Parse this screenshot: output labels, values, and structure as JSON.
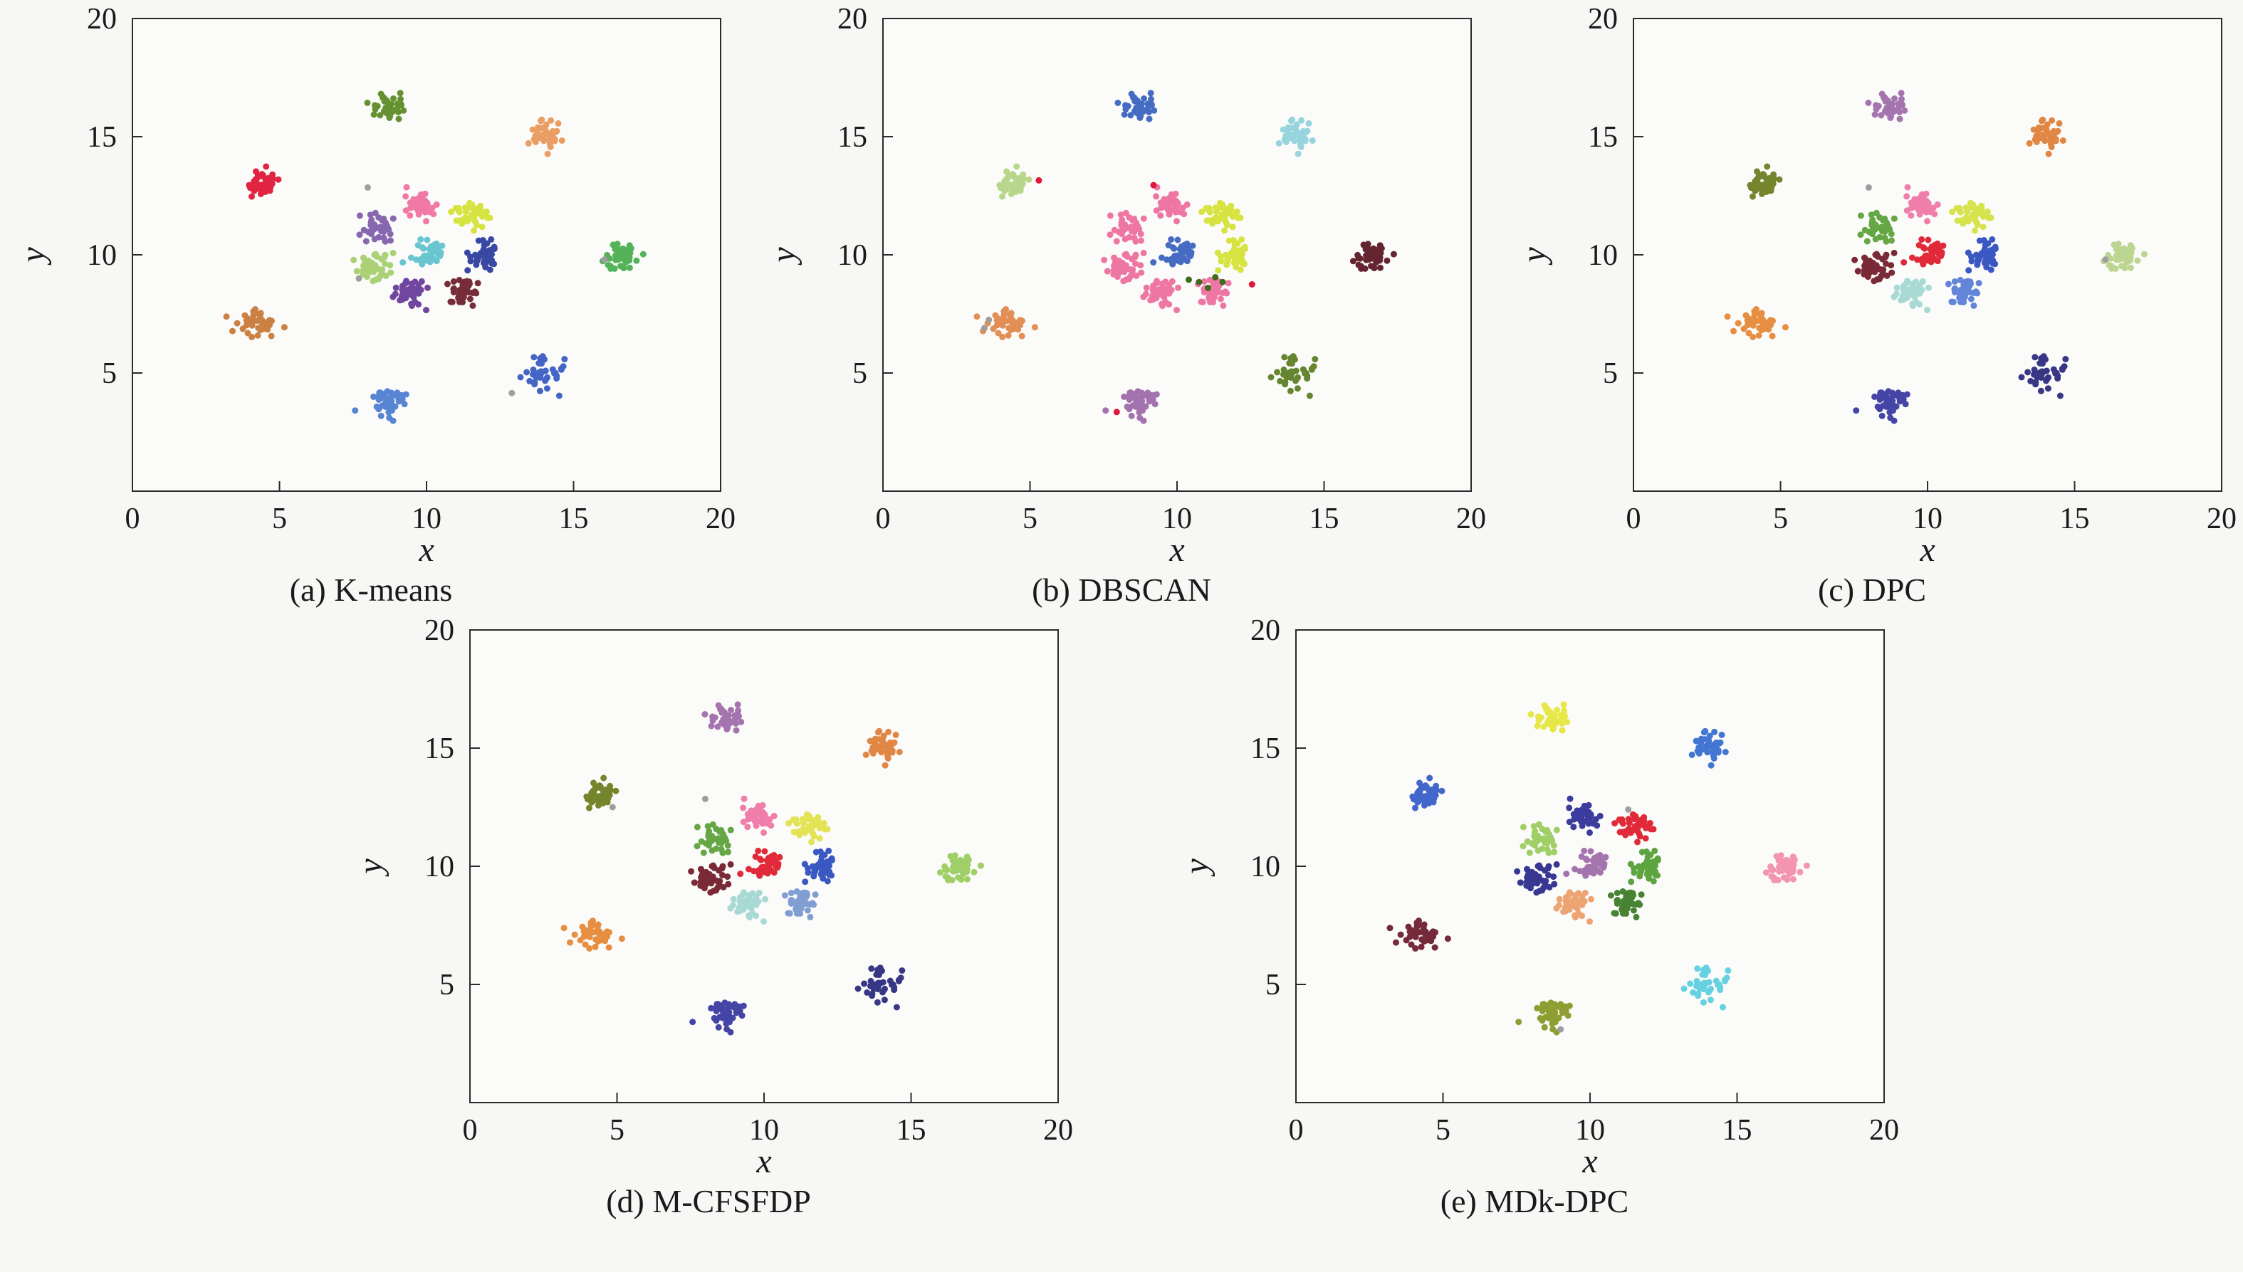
{
  "page": {
    "background": "#f7f7f5"
  },
  "chart_data": [
    {
      "id": "a",
      "type": "scatter",
      "caption": "(a) K-means",
      "xlabel": "x",
      "ylabel": "y",
      "xlim": [
        0,
        20
      ],
      "ylim": [
        0,
        20
      ],
      "xticks": [
        0,
        5,
        10,
        15,
        20
      ],
      "yticks": [
        5,
        10,
        15,
        20
      ],
      "grid": false,
      "legend": "none",
      "clusters": [
        {
          "center": [
            4.4,
            13.0
          ],
          "n": 40,
          "std": 0.3,
          "color": "#e01938"
        },
        {
          "center": [
            8.7,
            16.3
          ],
          "n": 40,
          "std": 0.3,
          "color": "#5f8c26"
        },
        {
          "center": [
            14.0,
            15.0
          ],
          "n": 40,
          "std": 0.3,
          "color": "#ea9a5e"
        },
        {
          "center": [
            16.6,
            9.9
          ],
          "n": 40,
          "std": 0.3,
          "color": "#4caf50"
        },
        {
          "center": [
            14.0,
            5.0
          ],
          "n": 40,
          "std": 0.3,
          "color": "#3b5ec4"
        },
        {
          "center": [
            8.7,
            3.8
          ],
          "n": 40,
          "std": 0.3,
          "color": "#4f7ed2"
        },
        {
          "center": [
            4.3,
            7.1
          ],
          "n": 40,
          "std": 0.3,
          "color": "#c97b3a"
        },
        {
          "center": [
            9.8,
            12.1
          ],
          "n": 40,
          "std": 0.3,
          "color": "#f173a2"
        },
        {
          "center": [
            11.5,
            11.7
          ],
          "n": 40,
          "std": 0.3,
          "color": "#d6e237"
        },
        {
          "center": [
            8.4,
            11.1
          ],
          "n": 40,
          "std": 0.3,
          "color": "#8161ad"
        },
        {
          "center": [
            8.2,
            9.5
          ],
          "n": 40,
          "std": 0.3,
          "color": "#a6cf6e"
        },
        {
          "center": [
            9.4,
            8.4
          ],
          "n": 40,
          "std": 0.3,
          "color": "#6a3d9a"
        },
        {
          "center": [
            11.2,
            8.5
          ],
          "n": 40,
          "std": 0.3,
          "color": "#6e2230"
        },
        {
          "center": [
            12.0,
            9.9
          ],
          "n": 40,
          "std": 0.3,
          "color": "#2f3f9e"
        },
        {
          "center": [
            10.1,
            10.1
          ],
          "n": 40,
          "std": 0.3,
          "color": "#62c4cf"
        }
      ],
      "noise": [
        {
          "x": 8.0,
          "y": 12.85,
          "color": "#9e9e9e"
        },
        {
          "x": 16.05,
          "y": 9.8,
          "color": "#9e9e9e"
        },
        {
          "x": 7.7,
          "y": 9.0,
          "color": "#9e9e9e"
        },
        {
          "x": 12.9,
          "y": 4.15,
          "color": "#9e9e9e"
        }
      ]
    },
    {
      "id": "b",
      "type": "scatter",
      "caption": "(b) DBSCAN",
      "xlabel": "x",
      "ylabel": "y",
      "xlim": [
        0,
        20
      ],
      "ylim": [
        0,
        20
      ],
      "xticks": [
        0,
        5,
        10,
        15,
        20
      ],
      "yticks": [
        5,
        10,
        15,
        20
      ],
      "grid": false,
      "legend": "none",
      "clusters": [
        {
          "center": [
            4.4,
            13.0
          ],
          "n": 40,
          "std": 0.3,
          "color": "#b5d687"
        },
        {
          "center": [
            8.7,
            16.3
          ],
          "n": 40,
          "std": 0.3,
          "color": "#3c64c0"
        },
        {
          "center": [
            14.0,
            15.0
          ],
          "n": 40,
          "std": 0.3,
          "color": "#92d2dc"
        },
        {
          "center": [
            16.6,
            9.9
          ],
          "n": 40,
          "std": 0.3,
          "color": "#5e1a26"
        },
        {
          "center": [
            14.0,
            5.0
          ],
          "n": 40,
          "std": 0.3,
          "color": "#5e7f26"
        },
        {
          "center": [
            8.7,
            3.8
          ],
          "n": 40,
          "std": 0.3,
          "color": "#9e6cac"
        },
        {
          "center": [
            4.3,
            7.1
          ],
          "n": 40,
          "std": 0.3,
          "color": "#e08a4c"
        },
        {
          "center": [
            9.8,
            12.1
          ],
          "n": 40,
          "std": 0.3,
          "color": "#ee6f9f"
        },
        {
          "center": [
            11.5,
            11.7
          ],
          "n": 40,
          "std": 0.3,
          "color": "#d6e237"
        },
        {
          "center": [
            8.4,
            11.1
          ],
          "n": 40,
          "std": 0.3,
          "color": "#ee6f9f"
        },
        {
          "center": [
            8.2,
            9.5
          ],
          "n": 40,
          "std": 0.3,
          "color": "#ee6f9f"
        },
        {
          "center": [
            9.4,
            8.4
          ],
          "n": 40,
          "std": 0.3,
          "color": "#ee6f9f"
        },
        {
          "center": [
            11.2,
            8.5
          ],
          "n": 40,
          "std": 0.3,
          "color": "#ee6f9f"
        },
        {
          "center": [
            12.0,
            9.9
          ],
          "n": 40,
          "std": 0.3,
          "color": "#d6e237"
        },
        {
          "center": [
            10.1,
            10.1
          ],
          "n": 40,
          "std": 0.3,
          "color": "#3c64c0"
        }
      ],
      "noise": [
        {
          "x": 5.3,
          "y": 13.15,
          "color": "#e0173a"
        },
        {
          "x": 7.95,
          "y": 3.35,
          "color": "#e0173a"
        },
        {
          "x": 9.2,
          "y": 12.95,
          "color": "#e0173a"
        },
        {
          "x": 12.55,
          "y": 8.75,
          "color": "#e0173a"
        },
        {
          "x": 10.75,
          "y": 8.85,
          "color": "#3f6b1c"
        },
        {
          "x": 11.3,
          "y": 9.05,
          "color": "#3f6b1c"
        },
        {
          "x": 10.4,
          "y": 8.95,
          "color": "#3f6b1c"
        },
        {
          "x": 11.05,
          "y": 8.6,
          "color": "#3f6b1c"
        },
        {
          "x": 11.55,
          "y": 8.85,
          "color": "#3f6b1c"
        },
        {
          "x": 3.6,
          "y": 7.25,
          "color": "#9e9e9e"
        },
        {
          "x": 3.45,
          "y": 6.9,
          "color": "#9e9e9e"
        }
      ]
    },
    {
      "id": "c",
      "type": "scatter",
      "caption": "(c) DPC",
      "xlabel": "x",
      "ylabel": "y",
      "xlim": [
        0,
        20
      ],
      "ylim": [
        0,
        20
      ],
      "xticks": [
        0,
        5,
        10,
        15,
        20
      ],
      "yticks": [
        5,
        10,
        15,
        20
      ],
      "grid": false,
      "legend": "none",
      "clusters": [
        {
          "center": [
            4.4,
            13.0
          ],
          "n": 40,
          "std": 0.3,
          "color": "#6e7f23"
        },
        {
          "center": [
            8.7,
            16.3
          ],
          "n": 40,
          "std": 0.3,
          "color": "#a06dab"
        },
        {
          "center": [
            14.0,
            15.0
          ],
          "n": 40,
          "std": 0.3,
          "color": "#e0813c"
        },
        {
          "center": [
            16.6,
            9.9
          ],
          "n": 40,
          "std": 0.3,
          "color": "#b9d48b"
        },
        {
          "center": [
            14.0,
            5.0
          ],
          "n": 40,
          "std": 0.3,
          "color": "#2d2d80"
        },
        {
          "center": [
            8.7,
            3.8
          ],
          "n": 40,
          "std": 0.3,
          "color": "#3c3ca2"
        },
        {
          "center": [
            4.3,
            7.1
          ],
          "n": 40,
          "std": 0.3,
          "color": "#e58a3a"
        },
        {
          "center": [
            9.8,
            12.1
          ],
          "n": 40,
          "std": 0.3,
          "color": "#f078a6"
        },
        {
          "center": [
            11.5,
            11.7
          ],
          "n": 40,
          "std": 0.3,
          "color": "#d6e243"
        },
        {
          "center": [
            8.4,
            11.1
          ],
          "n": 40,
          "std": 0.3,
          "color": "#5ea23c"
        },
        {
          "center": [
            8.2,
            9.5
          ],
          "n": 40,
          "std": 0.3,
          "color": "#741f2d"
        },
        {
          "center": [
            9.4,
            8.4
          ],
          "n": 40,
          "std": 0.3,
          "color": "#a5d8d4"
        },
        {
          "center": [
            11.2,
            8.5
          ],
          "n": 40,
          "std": 0.3,
          "color": "#5a7fd8"
        },
        {
          "center": [
            12.0,
            9.9
          ],
          "n": 40,
          "std": 0.3,
          "color": "#3050c0"
        },
        {
          "center": [
            10.1,
            10.1
          ],
          "n": 40,
          "std": 0.3,
          "color": "#e01f2f"
        }
      ],
      "noise": [
        {
          "x": 8.0,
          "y": 12.85,
          "color": "#9e9e9e"
        },
        {
          "x": 16.05,
          "y": 9.8,
          "color": "#9e9e9e"
        }
      ]
    },
    {
      "id": "d",
      "type": "scatter",
      "caption": "(d) M-CFSFDP",
      "xlabel": "x",
      "ylabel": "y",
      "xlim": [
        0,
        20
      ],
      "ylim": [
        0,
        20
      ],
      "xticks": [
        0,
        5,
        10,
        15,
        20
      ],
      "yticks": [
        5,
        10,
        15,
        20
      ],
      "grid": false,
      "legend": "none",
      "clusters": [
        {
          "center": [
            4.4,
            13.0
          ],
          "n": 40,
          "std": 0.3,
          "color": "#6e7f23"
        },
        {
          "center": [
            8.7,
            16.3
          ],
          "n": 40,
          "std": 0.3,
          "color": "#a06dab"
        },
        {
          "center": [
            14.0,
            15.0
          ],
          "n": 40,
          "std": 0.3,
          "color": "#e0813c"
        },
        {
          "center": [
            16.6,
            9.9
          ],
          "n": 40,
          "std": 0.3,
          "color": "#9ccc60"
        },
        {
          "center": [
            14.0,
            5.0
          ],
          "n": 40,
          "std": 0.3,
          "color": "#2d2d80"
        },
        {
          "center": [
            8.7,
            3.8
          ],
          "n": 40,
          "std": 0.3,
          "color": "#3c3ca2"
        },
        {
          "center": [
            4.3,
            7.1
          ],
          "n": 40,
          "std": 0.3,
          "color": "#e58a3a"
        },
        {
          "center": [
            9.8,
            12.1
          ],
          "n": 40,
          "std": 0.3,
          "color": "#f078a6"
        },
        {
          "center": [
            11.5,
            11.7
          ],
          "n": 40,
          "std": 0.3,
          "color": "#e2e24e"
        },
        {
          "center": [
            8.4,
            11.1
          ],
          "n": 40,
          "std": 0.3,
          "color": "#5ea23c"
        },
        {
          "center": [
            8.2,
            9.5
          ],
          "n": 40,
          "std": 0.3,
          "color": "#741f2d"
        },
        {
          "center": [
            9.4,
            8.4
          ],
          "n": 40,
          "std": 0.3,
          "color": "#a5d8d4"
        },
        {
          "center": [
            11.2,
            8.5
          ],
          "n": 40,
          "std": 0.3,
          "color": "#7a9ad0"
        },
        {
          "center": [
            12.0,
            9.9
          ],
          "n": 40,
          "std": 0.3,
          "color": "#3050c0"
        },
        {
          "center": [
            10.1,
            10.1
          ],
          "n": 40,
          "std": 0.3,
          "color": "#e01f2f"
        }
      ],
      "noise": [
        {
          "x": 4.85,
          "y": 12.5,
          "color": "#9e9e9e"
        },
        {
          "x": 8.0,
          "y": 12.85,
          "color": "#9e9e9e"
        }
      ]
    },
    {
      "id": "e",
      "type": "scatter",
      "caption": "(e) MDk-DPC",
      "xlabel": "x",
      "ylabel": "y",
      "xlim": [
        0,
        20
      ],
      "ylim": [
        0,
        20
      ],
      "xticks": [
        0,
        5,
        10,
        15,
        20
      ],
      "yticks": [
        5,
        10,
        15,
        20
      ],
      "grid": false,
      "legend": "none",
      "clusters": [
        {
          "center": [
            4.4,
            13.0
          ],
          "n": 40,
          "std": 0.3,
          "color": "#3a5fc8"
        },
        {
          "center": [
            8.7,
            16.3
          ],
          "n": 40,
          "std": 0.3,
          "color": "#e6e63e"
        },
        {
          "center": [
            14.0,
            15.0
          ],
          "n": 40,
          "std": 0.3,
          "color": "#3a6fd0"
        },
        {
          "center": [
            16.6,
            9.9
          ],
          "n": 40,
          "std": 0.3,
          "color": "#f48fb0"
        },
        {
          "center": [
            14.0,
            5.0
          ],
          "n": 40,
          "std": 0.3,
          "color": "#5fcfe0"
        },
        {
          "center": [
            8.7,
            3.8
          ],
          "n": 40,
          "std": 0.3,
          "color": "#8a9a28"
        },
        {
          "center": [
            4.3,
            7.1
          ],
          "n": 40,
          "std": 0.3,
          "color": "#6d1f2e"
        },
        {
          "center": [
            9.8,
            12.1
          ],
          "n": 40,
          "std": 0.3,
          "color": "#32329a"
        },
        {
          "center": [
            11.5,
            11.7
          ],
          "n": 40,
          "std": 0.3,
          "color": "#e01f2f"
        },
        {
          "center": [
            8.4,
            11.1
          ],
          "n": 40,
          "std": 0.3,
          "color": "#9ccc60"
        },
        {
          "center": [
            8.2,
            9.5
          ],
          "n": 40,
          "std": 0.3,
          "color": "#2e2e8e"
        },
        {
          "center": [
            9.4,
            8.4
          ],
          "n": 40,
          "std": 0.3,
          "color": "#eda06c"
        },
        {
          "center": [
            11.2,
            8.5
          ],
          "n": 40,
          "std": 0.3,
          "color": "#3e7d28"
        },
        {
          "center": [
            12.0,
            9.9
          ],
          "n": 40,
          "std": 0.3,
          "color": "#55a038"
        },
        {
          "center": [
            10.1,
            10.1
          ],
          "n": 40,
          "std": 0.3,
          "color": "#a06dab"
        }
      ],
      "noise": [
        {
          "x": 11.3,
          "y": 12.4,
          "color": "#9e9e9e"
        },
        {
          "x": 9.0,
          "y": 3.1,
          "color": "#9e9e9e"
        }
      ]
    }
  ]
}
